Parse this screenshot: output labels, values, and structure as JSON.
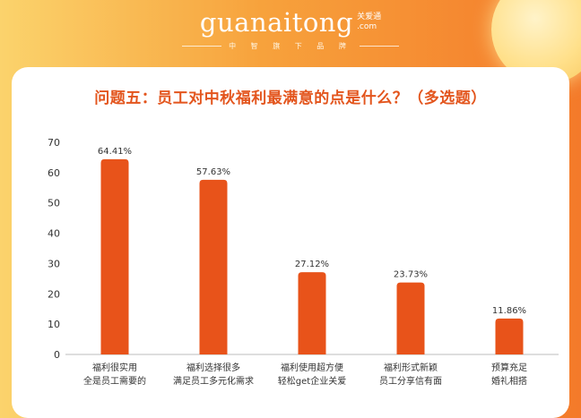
{
  "brand": {
    "name": "guanaitong",
    "name_cn": "关爱通",
    "domain": ".com",
    "slogan": "中 智 旗 下 品 牌"
  },
  "question": "问题五：员工对中秋福利最满意的点是什么？（多选题）",
  "colors": {
    "bar": "#e8531a",
    "title": "#e3551d",
    "background_start": "#fbd36c",
    "background_end": "#f47a2a"
  },
  "chart_data": {
    "type": "bar",
    "categories": [
      [
        "福利很实用",
        "全是员工需要的"
      ],
      [
        "福利选择很多",
        "满足员工多元化需求"
      ],
      [
        "福利使用超方便",
        "轻松get企业关爱"
      ],
      [
        "福利形式新颖",
        "员工分享信有面"
      ],
      [
        "预算充足",
        "婚礼相搭"
      ]
    ],
    "values": [
      64.41,
      57.63,
      27.12,
      23.73,
      11.86
    ],
    "data_labels": [
      "64.41%",
      "57.63%",
      "27.12%",
      "23.73%",
      "11.86%"
    ],
    "ylim": [
      0,
      70
    ],
    "yticks": [
      0,
      10,
      20,
      30,
      40,
      50,
      60,
      70
    ],
    "grid": false,
    "legend": "none"
  }
}
